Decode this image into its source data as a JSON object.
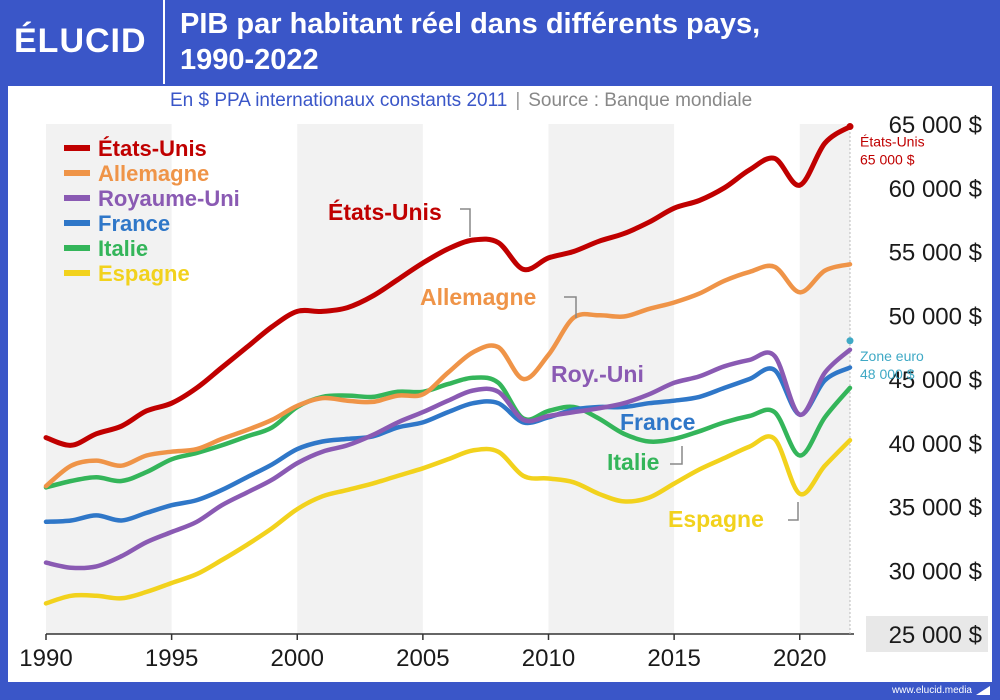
{
  "header": {
    "logo": "ÉLUCID",
    "title_line1": "PIB par habitant réel dans différents pays,",
    "title_line2": "1990-2022",
    "subtitle": "En $ PPA internationaux constants 2011",
    "separator": "|",
    "source": "Source : Banque mondiale"
  },
  "footer": {
    "url": "www.elucid.media"
  },
  "colors": {
    "Etats-Unis": "#c00000",
    "Allemagne": "#ef9448",
    "Royaume-Uni": "#8a5ab3",
    "France": "#2f77c8",
    "Italie": "#34b55a",
    "Espagne": "#f2d21d",
    "Zone euro": "#3fa9c5",
    "background": "#3a56c8"
  },
  "chart_data": {
    "type": "line",
    "title": "PIB par habitant réel dans différents pays, 1990-2022",
    "subtitle": "En $ PPA internationaux constants 2011",
    "xlim": [
      1990,
      2022
    ],
    "ylim": [
      25000,
      65000
    ],
    "x_ticks": [
      1990,
      1995,
      2000,
      2005,
      2010,
      2015,
      2020
    ],
    "x_tick_labels": [
      "1990",
      "1995",
      "2000",
      "2005",
      "2010",
      "2015",
      "2020"
    ],
    "y_ticks": [
      25000,
      30000,
      35000,
      40000,
      45000,
      50000,
      55000,
      60000,
      65000
    ],
    "y_tick_labels": [
      "25 000 $",
      "30 000 $",
      "35 000 $",
      "40 000 $",
      "45 000 $",
      "50 000 $",
      "55 000 $",
      "60 000 $",
      "65 000 $"
    ],
    "x": [
      1990,
      1991,
      1992,
      1993,
      1994,
      1995,
      1996,
      1997,
      1998,
      1999,
      2000,
      2001,
      2002,
      2003,
      2004,
      2005,
      2006,
      2007,
      2008,
      2009,
      2010,
      2011,
      2012,
      2013,
      2014,
      2015,
      2016,
      2017,
      2018,
      2019,
      2020,
      2021,
      2022
    ],
    "series": [
      {
        "name": "États-Unis",
        "values": [
          40400,
          39800,
          40700,
          41300,
          42500,
          43100,
          44300,
          45900,
          47500,
          49100,
          50300,
          50300,
          50600,
          51500,
          52800,
          54100,
          55200,
          55900,
          55700,
          53600,
          54500,
          55000,
          55800,
          56400,
          57300,
          58400,
          59000,
          60000,
          61400,
          62300,
          60200,
          63500,
          64800
        ]
      },
      {
        "name": "Allemagne",
        "values": [
          36600,
          38200,
          38600,
          38200,
          39000,
          39300,
          39500,
          40300,
          41000,
          41800,
          42900,
          43500,
          43300,
          43200,
          43700,
          43800,
          45500,
          47100,
          47500,
          45000,
          46900,
          49800,
          50000,
          49900,
          50500,
          51000,
          51700,
          52700,
          53400,
          53800,
          51800,
          53500,
          54000
        ]
      },
      {
        "name": "Royaume-Uni",
        "values": [
          30600,
          30200,
          30300,
          31100,
          32200,
          33000,
          33800,
          35100,
          36100,
          37100,
          38400,
          39300,
          39800,
          40600,
          41600,
          42400,
          43300,
          44100,
          44000,
          41800,
          42100,
          42400,
          42700,
          43100,
          43800,
          44700,
          45200,
          46000,
          46500,
          46800,
          42200,
          45500,
          47300
        ]
      },
      {
        "name": "France",
        "values": [
          33800,
          33900,
          34300,
          33900,
          34500,
          35100,
          35500,
          36300,
          37300,
          38300,
          39500,
          40100,
          40300,
          40500,
          41200,
          41600,
          42400,
          43100,
          43100,
          41600,
          42000,
          42600,
          42800,
          42800,
          43100,
          43300,
          43600,
          44300,
          45000,
          45700,
          42200,
          44900,
          45900
        ]
      },
      {
        "name": "Italie",
        "values": [
          36500,
          37000,
          37300,
          37000,
          37700,
          38700,
          39200,
          39800,
          40500,
          41200,
          42800,
          43600,
          43700,
          43600,
          44000,
          44000,
          44600,
          45100,
          44700,
          41900,
          42500,
          42800,
          41900,
          40700,
          40100,
          40300,
          40900,
          41600,
          42100,
          42400,
          39000,
          42000,
          44300
        ]
      },
      {
        "name": "Espagne",
        "values": [
          27400,
          28000,
          28000,
          27800,
          28300,
          29000,
          29700,
          30800,
          32000,
          33300,
          34800,
          35800,
          36300,
          36800,
          37400,
          38000,
          38700,
          39400,
          39300,
          37400,
          37200,
          36900,
          36000,
          35400,
          35700,
          36800,
          37900,
          38800,
          39700,
          40300,
          36000,
          38200,
          40200
        ]
      }
    ],
    "legend": {
      "placement": "top-left",
      "entries": [
        "États-Unis",
        "Allemagne",
        "Royaume-Uni",
        "France",
        "Italie",
        "Espagne"
      ]
    },
    "inline_labels": [
      {
        "series": "États-Unis",
        "text": "États-Unis"
      },
      {
        "series": "Allemagne",
        "text": "Allemagne"
      },
      {
        "series": "Royaume-Uni",
        "text": "Roy.-Uni"
      },
      {
        "series": "France",
        "text": "France"
      },
      {
        "series": "Italie",
        "text": "Italie"
      },
      {
        "series": "Espagne",
        "text": "Espagne"
      }
    ],
    "annotations": [
      {
        "name": "Etats-Unis",
        "line1": "États-Unis",
        "line2": "65 000 $",
        "x": 2022,
        "y": 64800
      },
      {
        "name": "Zone euro",
        "line1": "Zone euro",
        "line2": "48 000 $",
        "x": 2022,
        "y": 48000
      }
    ],
    "grid": "alternating vertical bands every 5 years"
  }
}
